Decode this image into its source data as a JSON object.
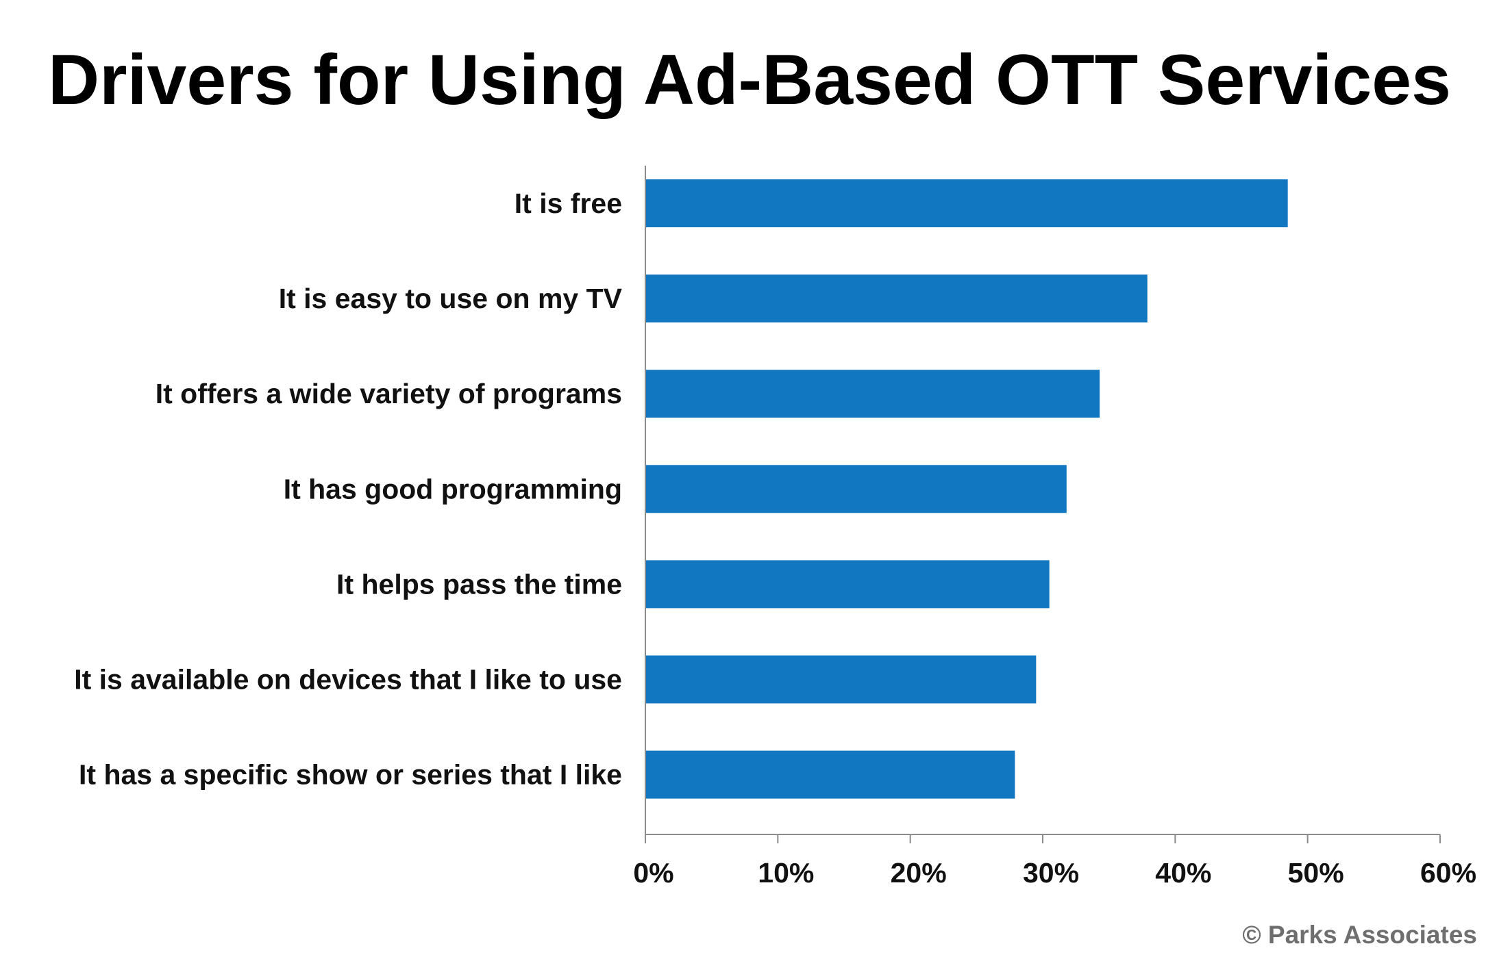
{
  "chart_data": {
    "type": "bar",
    "orientation": "horizontal",
    "title": "Drivers for Using Ad-Based OTT Services",
    "categories": [
      "It is free",
      "It is easy to use on my TV",
      "It offers a wide variety of programs",
      "It has good programming",
      "It helps pass the time",
      "It is available on devices that I like to use",
      "It has a specific show or series that I like"
    ],
    "values": [
      48.5,
      37.9,
      34.3,
      31.8,
      30.5,
      29.5,
      27.9
    ],
    "unit": "%",
    "xlim": [
      0,
      60
    ],
    "xticks": [
      0,
      10,
      20,
      30,
      40,
      50,
      60
    ],
    "xtick_labels": [
      "0%",
      "10%",
      "20%",
      "30%",
      "40%",
      "50%",
      "60%"
    ],
    "xlabel": "",
    "ylabel": "",
    "grid": false,
    "legend": null
  },
  "credit": "© Parks Associates",
  "colors": {
    "bar": "#1177C0",
    "axis": "#8C8C8C",
    "credit": "#6E6E6E",
    "text": "#111111"
  }
}
